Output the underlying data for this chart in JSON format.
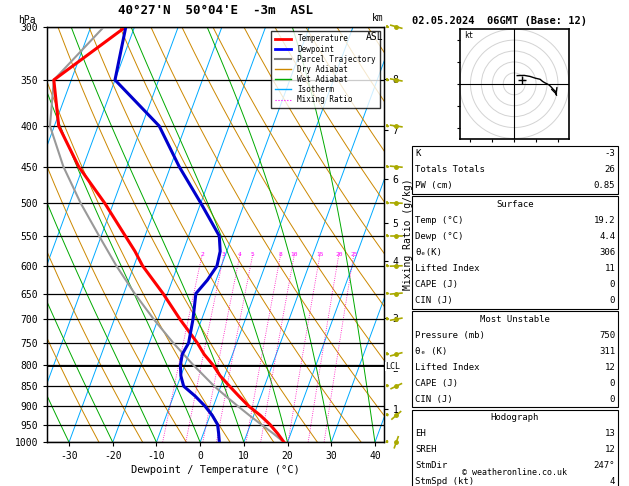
{
  "title_left": "40°27'N  50°04'E  -3m  ASL",
  "title_date": "02.05.2024  06GMT (Base: 12)",
  "xlabel": "Dewpoint / Temperature (°C)",
  "pressure_ticks": [
    300,
    350,
    400,
    450,
    500,
    550,
    600,
    650,
    700,
    750,
    800,
    850,
    900,
    950,
    1000
  ],
  "temp_ticks": [
    -30,
    -20,
    -10,
    0,
    10,
    20,
    30,
    40
  ],
  "T_min": -35,
  "T_max": 42,
  "P_min": 300,
  "P_max": 1000,
  "skew": 35,
  "km_ticks": [
    1,
    2,
    3,
    4,
    5,
    6,
    7,
    8
  ],
  "km_pressures": [
    908,
    806,
    698,
    591,
    530,
    466,
    405,
    349
  ],
  "lcl_pressure": 802,
  "temp_profile": {
    "pressure": [
      1000,
      975,
      950,
      925,
      900,
      875,
      850,
      825,
      800,
      775,
      750,
      700,
      650,
      600,
      575,
      550,
      500,
      450,
      400,
      350,
      300
    ],
    "temp": [
      19.2,
      17.0,
      14.5,
      11.5,
      8.0,
      5.0,
      2.0,
      -1.0,
      -3.5,
      -6.5,
      -9.0,
      -15.0,
      -21.0,
      -28.0,
      -31.0,
      -34.5,
      -42.0,
      -51.0,
      -59.0,
      -64.0,
      -52.0
    ]
  },
  "dewpoint_profile": {
    "pressure": [
      1000,
      975,
      950,
      925,
      900,
      875,
      850,
      825,
      800,
      775,
      750,
      700,
      650,
      625,
      600,
      575,
      550,
      500,
      450,
      400,
      350,
      300
    ],
    "temp": [
      4.4,
      3.5,
      2.5,
      0.5,
      -2.0,
      -5.0,
      -8.5,
      -10.0,
      -11.0,
      -11.5,
      -11.0,
      -12.0,
      -13.5,
      -12.0,
      -11.0,
      -11.5,
      -13.0,
      -20.0,
      -28.0,
      -36.0,
      -50.0,
      -52.0
    ]
  },
  "parcel_profile": {
    "pressure": [
      1000,
      975,
      950,
      925,
      900,
      875,
      850,
      800,
      750,
      700,
      650,
      600,
      550,
      500,
      450,
      400,
      350,
      300
    ],
    "temp": [
      19.2,
      16.0,
      12.5,
      9.0,
      5.5,
      2.0,
      -1.5,
      -8.0,
      -14.5,
      -21.0,
      -27.5,
      -34.0,
      -40.5,
      -47.5,
      -54.5,
      -61.0,
      -64.0,
      -57.0
    ]
  },
  "colors": {
    "temp": "#ff0000",
    "dewpoint": "#0000cc",
    "parcel": "#999999",
    "dry_adiabat": "#cc8800",
    "wet_adiabat": "#00aa00",
    "isotherm": "#00aaff",
    "mixing_ratio": "#ff00bb",
    "background": "#ffffff",
    "border": "#000000"
  },
  "k_index": -3,
  "totals_totals": 26,
  "pw_cm": 0.85,
  "surface_temp": 19.2,
  "surface_dewp": 4.4,
  "theta_e_surface": 306,
  "lifted_index_surface": 11,
  "cape_surface": 0,
  "cin_surface": 0,
  "mu_pressure": 750,
  "mu_theta_e": 311,
  "mu_lifted_index": 12,
  "mu_cape": 0,
  "mu_cin": 0,
  "EH": 13,
  "SREH": 12,
  "StmDir": 247,
  "StmSpd": 4,
  "wind_pressure": [
    1000,
    925,
    850,
    775,
    700,
    650,
    600,
    550,
    500,
    450,
    400,
    350,
    300
  ],
  "wind_direction": [
    200,
    230,
    245,
    255,
    260,
    265,
    268,
    270,
    272,
    275,
    278,
    280,
    285
  ],
  "wind_speed": [
    4,
    6,
    8,
    10,
    12,
    13,
    14,
    15,
    16,
    17,
    18,
    19,
    20
  ]
}
